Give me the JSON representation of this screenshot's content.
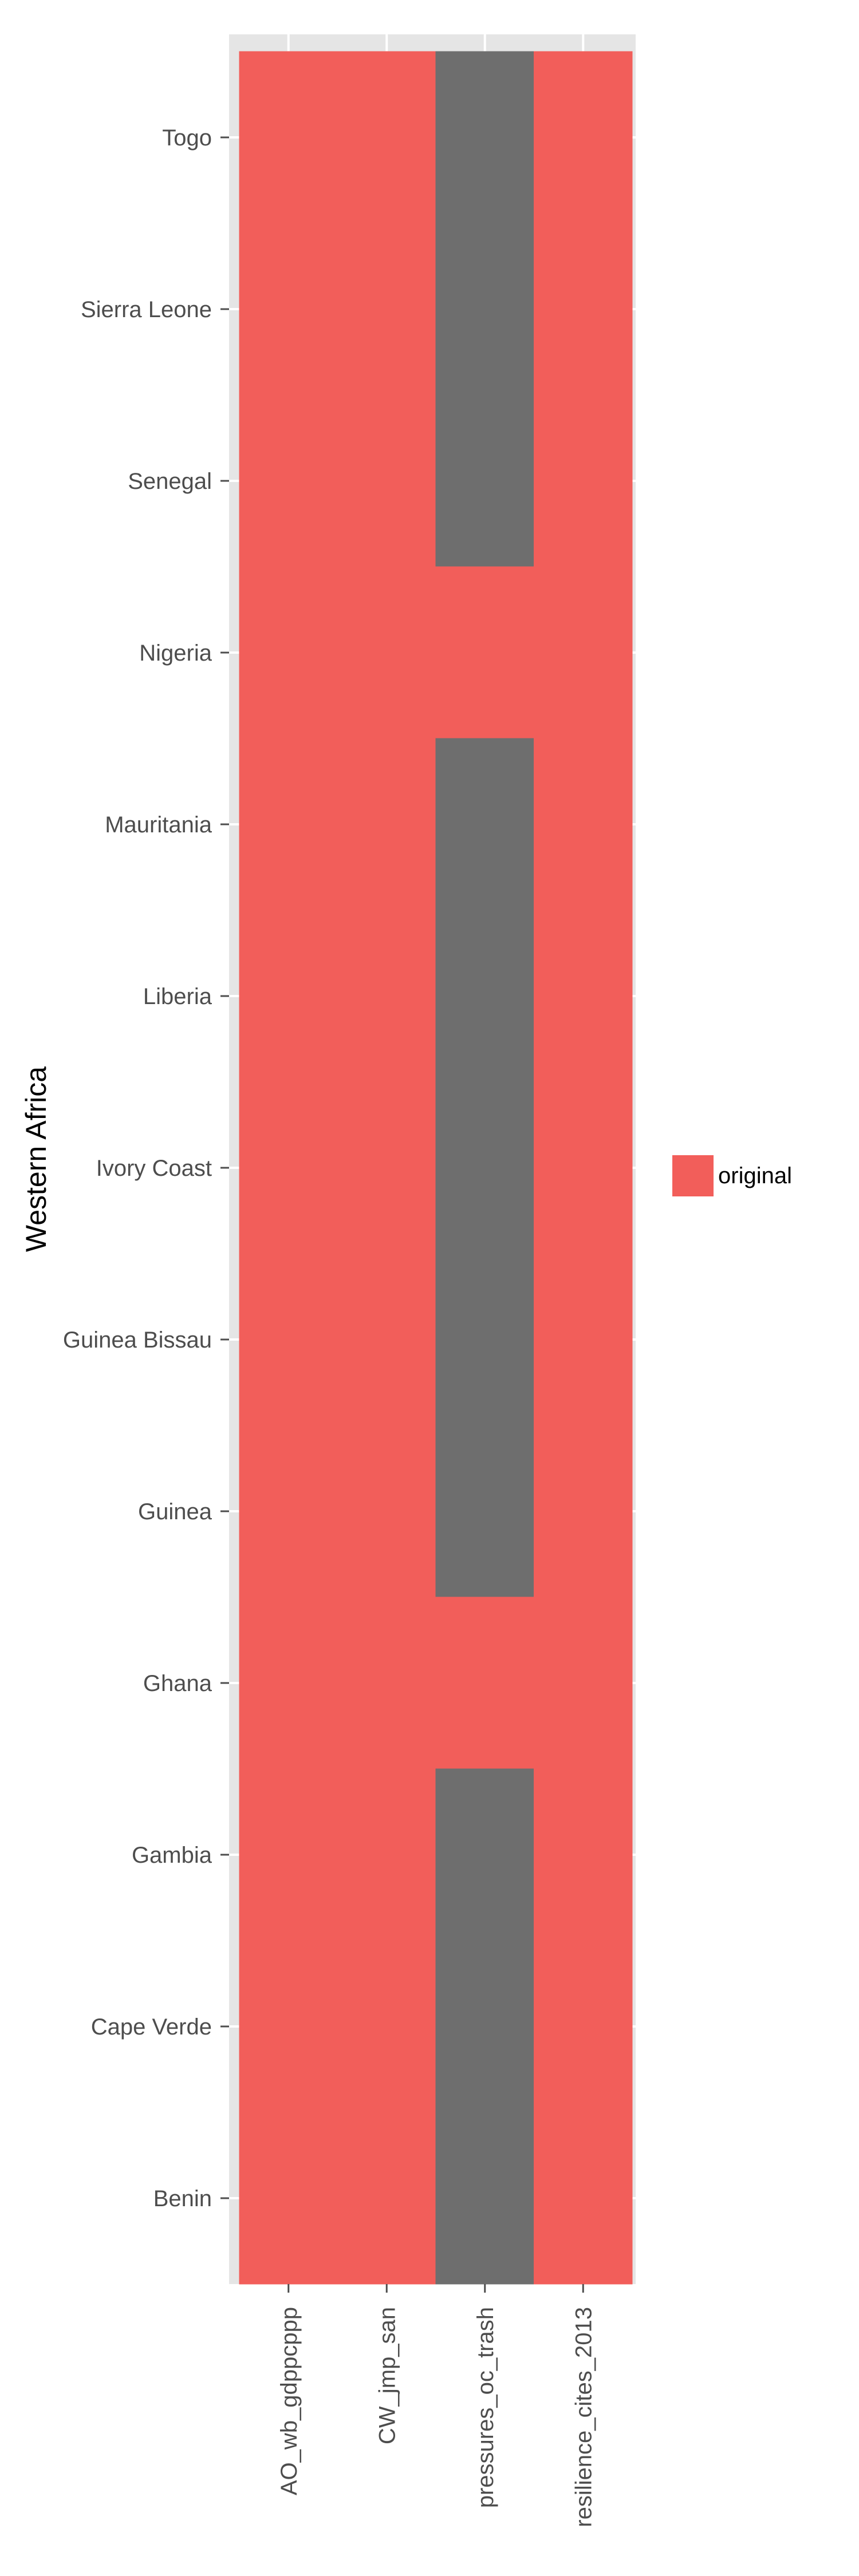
{
  "chart_data": {
    "type": "heatmap",
    "title": "",
    "xlabel": "",
    "ylabel": "Western Africa",
    "x_categories": [
      "AO_wb_gdppcppp",
      "CW_jmp_san",
      "pressures_oc_trash",
      "resilience_cites_2013"
    ],
    "y_categories": [
      "Togo",
      "Sierra Leone",
      "Senegal",
      "Nigeria",
      "Mauritania",
      "Liberia",
      "Ivory Coast",
      "Guinea Bissau",
      "Guinea",
      "Ghana",
      "Gambia",
      "Cape Verde",
      "Benin"
    ],
    "cells": [
      [
        "original",
        "original",
        null,
        "original"
      ],
      [
        "original",
        "original",
        null,
        "original"
      ],
      [
        "original",
        "original",
        null,
        "original"
      ],
      [
        "original",
        "original",
        "original",
        "original"
      ],
      [
        "original",
        "original",
        null,
        "original"
      ],
      [
        "original",
        "original",
        null,
        "original"
      ],
      [
        "original",
        "original",
        null,
        "original"
      ],
      [
        "original",
        "original",
        null,
        "original"
      ],
      [
        "original",
        "original",
        null,
        "original"
      ],
      [
        "original",
        "original",
        "original",
        "original"
      ],
      [
        "original",
        "original",
        null,
        "original"
      ],
      [
        "original",
        "original",
        null,
        "original"
      ],
      [
        "original",
        "original",
        null,
        "original"
      ]
    ],
    "legend": {
      "position": "right",
      "entries": [
        {
          "label": "original",
          "color": "#f25e5a"
        }
      ]
    },
    "missing_color": "#6e6e6e",
    "panel_background": "#e5e5e5",
    "grid": true
  }
}
